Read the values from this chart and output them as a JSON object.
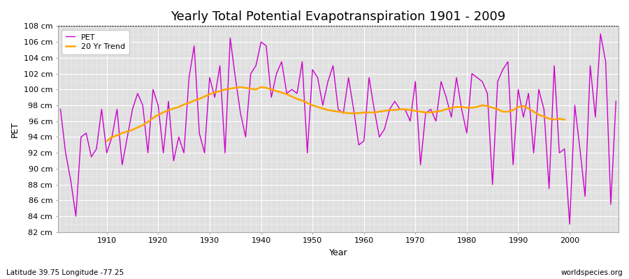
{
  "title": "Yearly Total Potential Evapotranspiration 1901 - 2009",
  "ylabel": "PET",
  "xlabel": "Year",
  "footnote_left": "Latitude 39.75 Longitude -77.25",
  "footnote_right": "worldspecies.org",
  "years": [
    1901,
    1902,
    1903,
    1904,
    1905,
    1906,
    1907,
    1908,
    1909,
    1910,
    1911,
    1912,
    1913,
    1914,
    1915,
    1916,
    1917,
    1918,
    1919,
    1920,
    1921,
    1922,
    1923,
    1924,
    1925,
    1926,
    1927,
    1928,
    1929,
    1930,
    1931,
    1932,
    1933,
    1934,
    1935,
    1936,
    1937,
    1938,
    1939,
    1940,
    1941,
    1942,
    1943,
    1944,
    1945,
    1946,
    1947,
    1948,
    1949,
    1950,
    1951,
    1952,
    1953,
    1954,
    1955,
    1956,
    1957,
    1958,
    1959,
    1960,
    1961,
    1962,
    1963,
    1964,
    1965,
    1966,
    1967,
    1968,
    1969,
    1970,
    1971,
    1972,
    1973,
    1974,
    1975,
    1976,
    1977,
    1978,
    1979,
    1980,
    1981,
    1982,
    1983,
    1984,
    1985,
    1986,
    1987,
    1988,
    1989,
    1990,
    1991,
    1992,
    1993,
    1994,
    1995,
    1996,
    1997,
    1998,
    1999,
    2000,
    2001,
    2002,
    2003,
    2004,
    2005,
    2006,
    2007,
    2008,
    2009
  ],
  "pet": [
    97.5,
    92.0,
    88.5,
    84.0,
    94.0,
    94.5,
    91.5,
    92.5,
    97.5,
    92.0,
    94.0,
    97.5,
    90.5,
    94.0,
    97.5,
    99.5,
    98.0,
    92.0,
    100.0,
    98.0,
    92.0,
    98.5,
    91.0,
    94.0,
    92.0,
    101.5,
    105.5,
    94.5,
    92.0,
    101.5,
    99.0,
    103.0,
    92.0,
    106.5,
    101.5,
    97.0,
    94.0,
    102.0,
    103.0,
    106.0,
    105.5,
    99.0,
    102.0,
    103.5,
    99.5,
    100.0,
    99.5,
    103.5,
    92.0,
    102.5,
    101.5,
    98.0,
    101.0,
    103.0,
    97.5,
    97.0,
    101.5,
    97.5,
    93.0,
    93.5,
    101.5,
    97.5,
    94.0,
    95.0,
    97.5,
    98.5,
    97.5,
    97.5,
    96.0,
    101.0,
    90.5,
    97.0,
    97.5,
    96.0,
    101.0,
    99.0,
    96.5,
    101.5,
    97.5,
    94.5,
    102.0,
    101.5,
    101.0,
    99.5,
    88.0,
    101.0,
    102.5,
    103.5,
    90.5,
    100.0,
    96.5,
    99.5,
    92.0,
    100.0,
    97.5,
    87.5,
    103.0,
    92.0,
    92.5,
    83.0,
    98.0,
    92.5,
    86.5,
    103.0,
    96.5,
    107.0,
    103.5,
    85.5,
    98.5
  ],
  "trend": [
    null,
    null,
    null,
    null,
    null,
    null,
    null,
    null,
    null,
    93.5,
    94.0,
    94.2,
    94.5,
    94.7,
    94.9,
    95.2,
    95.5,
    95.9,
    96.4,
    96.8,
    97.1,
    97.4,
    97.6,
    97.8,
    98.1,
    98.3,
    98.6,
    98.8,
    99.1,
    99.4,
    99.6,
    99.8,
    100.0,
    100.1,
    100.2,
    100.3,
    100.2,
    100.1,
    100.0,
    100.3,
    100.2,
    100.0,
    99.8,
    99.6,
    99.4,
    99.1,
    98.8,
    98.6,
    98.3,
    98.0,
    97.8,
    97.6,
    97.4,
    97.3,
    97.2,
    97.1,
    97.0,
    97.0,
    97.0,
    97.1,
    97.1,
    97.1,
    97.2,
    97.3,
    97.4,
    97.4,
    97.5,
    97.5,
    97.4,
    97.3,
    97.2,
    97.1,
    97.1,
    97.2,
    97.3,
    97.5,
    97.7,
    97.8,
    97.8,
    97.7,
    97.7,
    97.8,
    98.0,
    97.9,
    97.7,
    97.5,
    97.2,
    97.2,
    97.4,
    97.8,
    97.9,
    97.6,
    97.2,
    96.8,
    96.6,
    96.3,
    96.2,
    96.3,
    96.2,
    null,
    null,
    null,
    null,
    null,
    null,
    null,
    null,
    null,
    null
  ],
  "pet_color": "#CC00CC",
  "trend_color": "#FFA500",
  "fig_bg_color": "#FFFFFF",
  "plot_bg_color": "#E0E0E0",
  "grid_color": "#FFFFFF",
  "ylim": [
    82,
    108
  ],
  "yticks": [
    82,
    84,
    86,
    88,
    90,
    92,
    94,
    96,
    98,
    100,
    102,
    104,
    106,
    108
  ],
  "xticks": [
    1910,
    1920,
    1930,
    1940,
    1950,
    1960,
    1970,
    1980,
    1990,
    2000
  ],
  "dotted_line_y": 108,
  "title_fontsize": 13,
  "axis_fontsize": 9,
  "tick_fontsize": 8,
  "footnote_fontsize": 7.5
}
